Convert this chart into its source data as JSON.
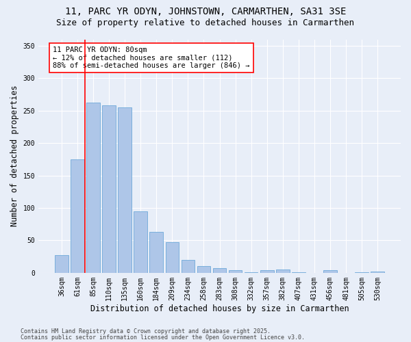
{
  "title1": "11, PARC YR ODYN, JOHNSTOWN, CARMARTHEN, SA31 3SE",
  "title2": "Size of property relative to detached houses in Carmarthen",
  "xlabel": "Distribution of detached houses by size in Carmarthen",
  "ylabel": "Number of detached properties",
  "categories": [
    "36sqm",
    "61sqm",
    "85sqm",
    "110sqm",
    "135sqm",
    "160sqm",
    "184sqm",
    "209sqm",
    "234sqm",
    "258sqm",
    "283sqm",
    "308sqm",
    "332sqm",
    "357sqm",
    "382sqm",
    "407sqm",
    "431sqm",
    "456sqm",
    "481sqm",
    "505sqm",
    "530sqm"
  ],
  "values": [
    27,
    175,
    262,
    258,
    255,
    95,
    63,
    47,
    20,
    10,
    7,
    4,
    1,
    4,
    5,
    1,
    0,
    4,
    0,
    1,
    2
  ],
  "bar_color": "#aec6e8",
  "bar_edge_color": "#5a9fd4",
  "vline_x": 1.5,
  "vline_color": "red",
  "annotation_text": "11 PARC YR ODYN: 80sqm\n← 12% of detached houses are smaller (112)\n88% of semi-detached houses are larger (846) →",
  "annotation_box_color": "white",
  "annotation_box_edge": "red",
  "ylim": [
    0,
    360
  ],
  "yticks": [
    0,
    50,
    100,
    150,
    200,
    250,
    300,
    350
  ],
  "background_color": "#e8eef8",
  "grid_color": "white",
  "footer1": "Contains HM Land Registry data © Crown copyright and database right 2025.",
  "footer2": "Contains public sector information licensed under the Open Government Licence v3.0.",
  "title_fontsize": 10,
  "subtitle_fontsize": 9,
  "axis_label_fontsize": 8.5,
  "tick_fontsize": 7,
  "annotation_fontsize": 7.5,
  "footer_fontsize": 6
}
